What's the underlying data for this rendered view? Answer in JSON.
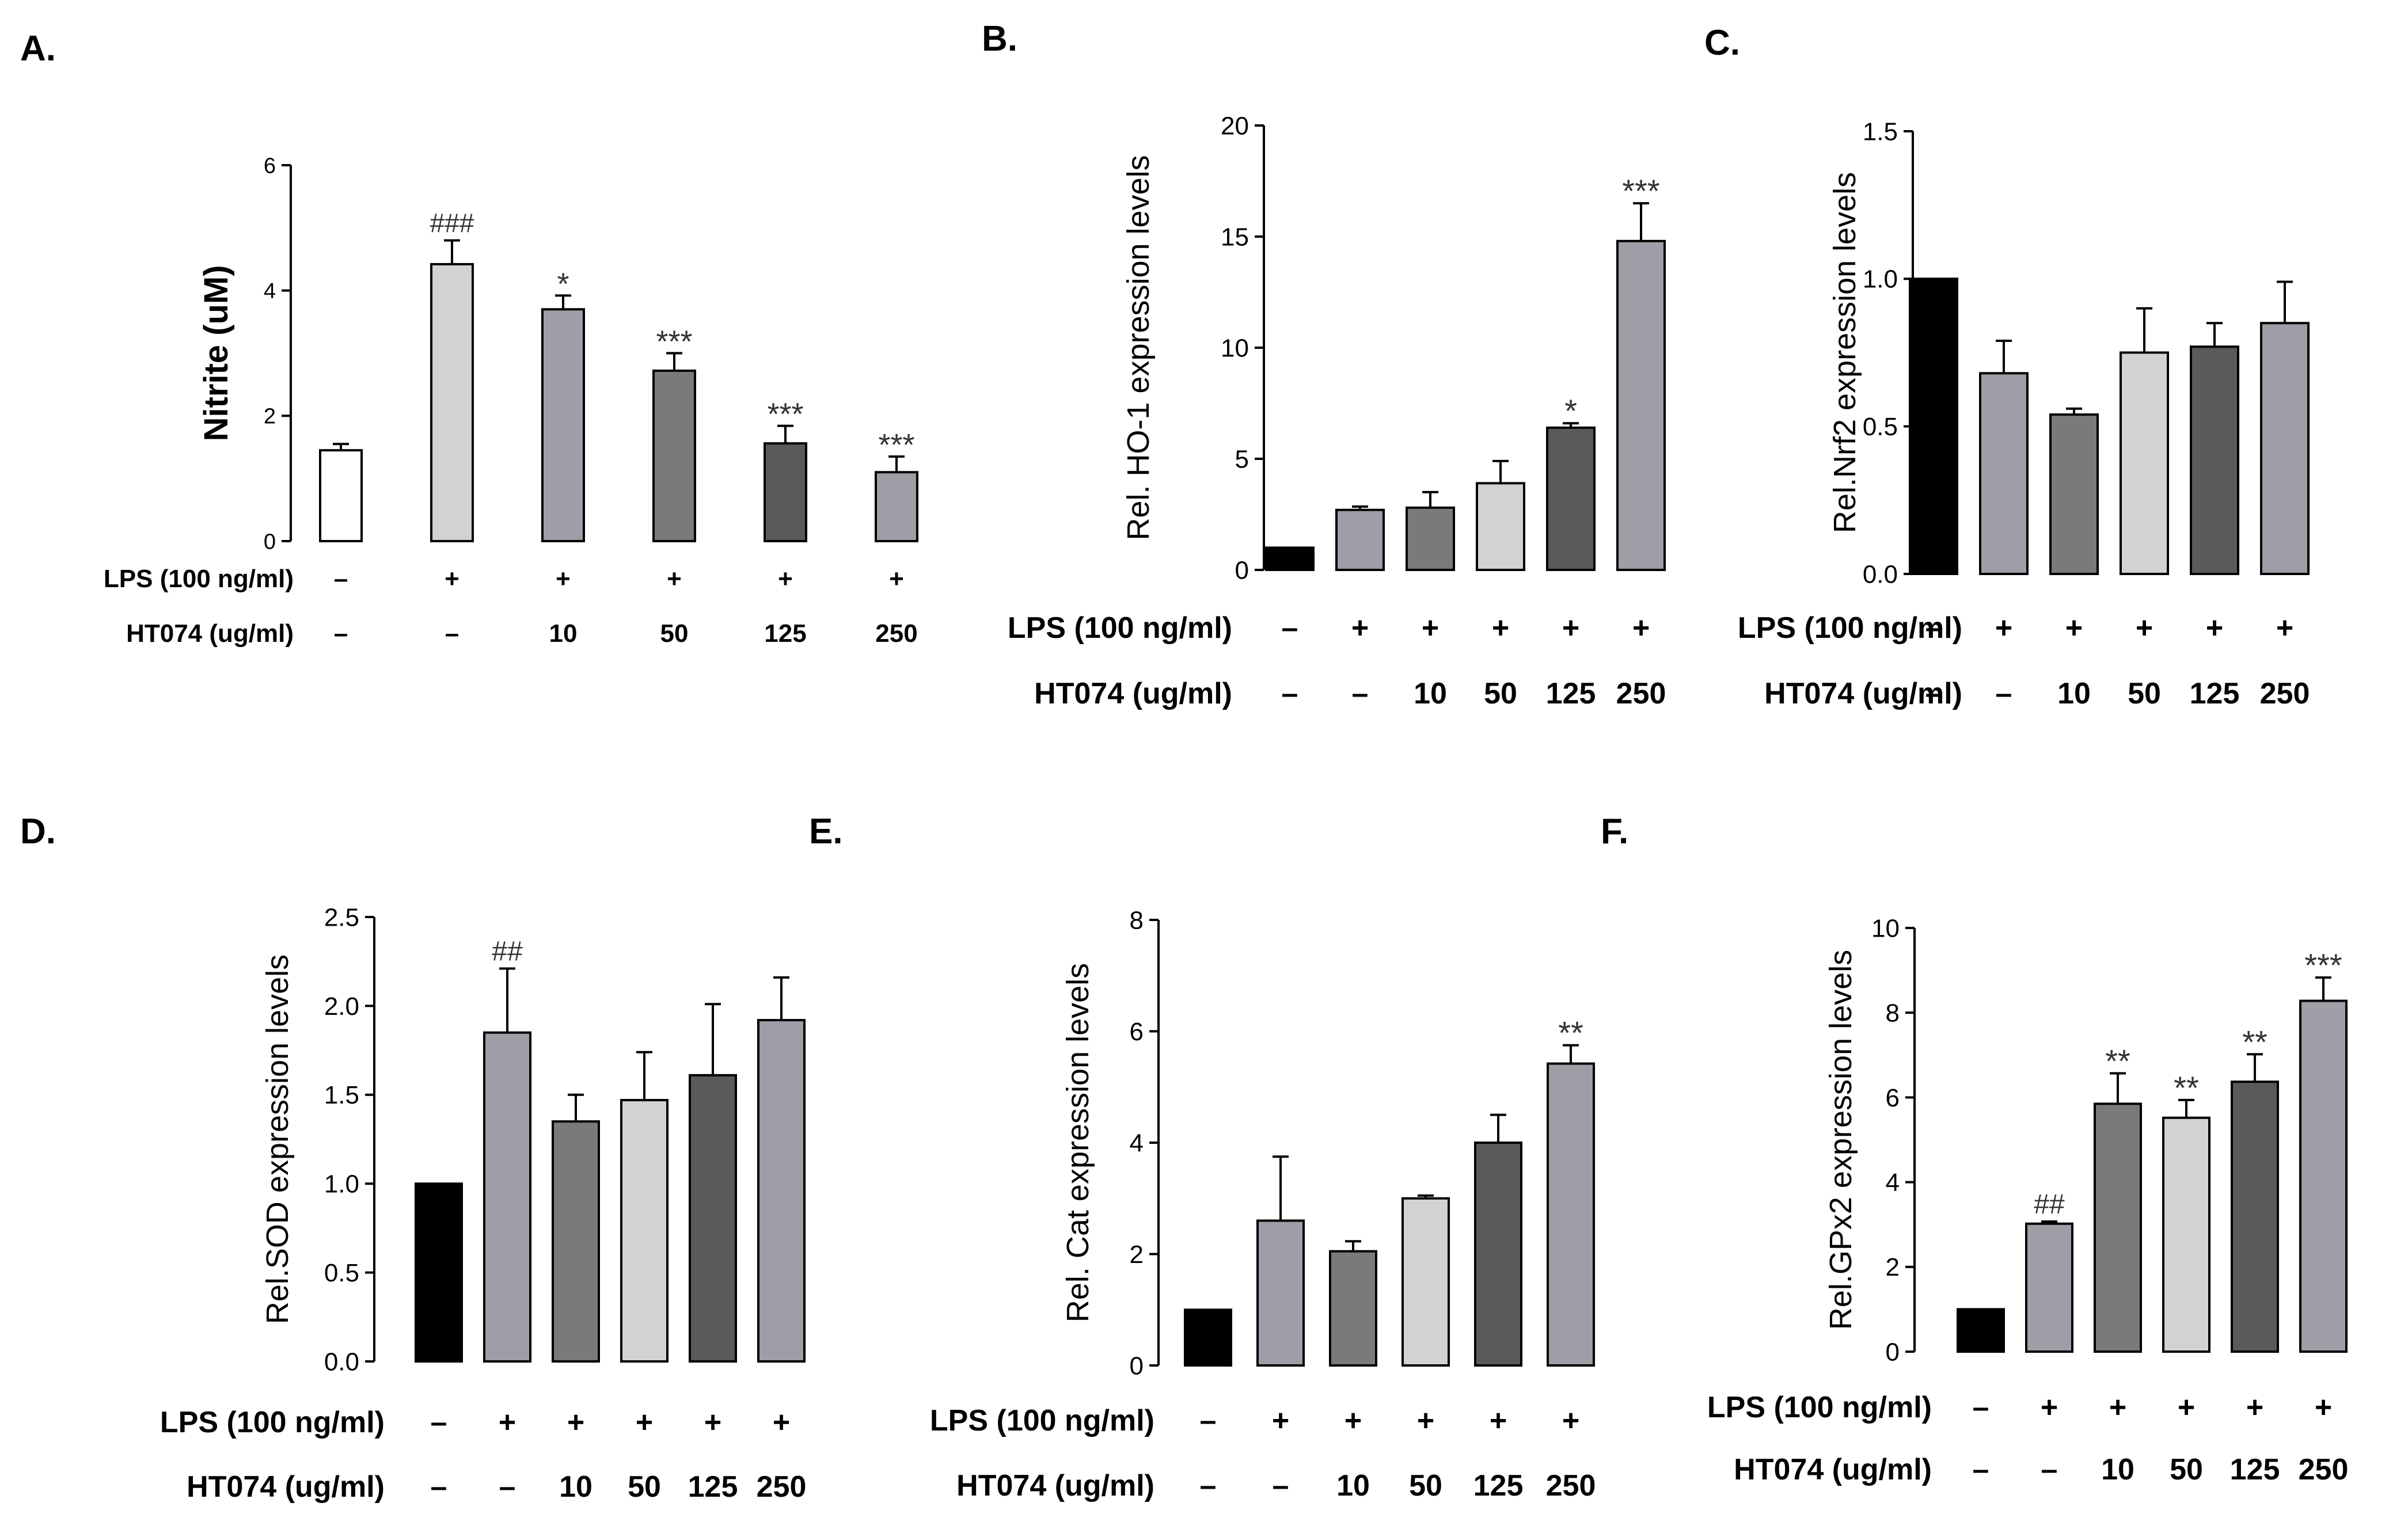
{
  "panel_spec": {
    "colors": {
      "white": "#ffffff",
      "black": "#000000",
      "mid": "#9e9ea6",
      "light": "#d2d2d2",
      "dark": "#7a7a7a",
      "darker": "#5a5a5a",
      "axis": "#000000"
    }
  },
  "chart_data": [
    {
      "type": "bar",
      "panel_label": "A.",
      "title": "",
      "ylabel": "Nitrite (uM)",
      "ylim": [
        0,
        6
      ],
      "yticks": [
        "0",
        "2",
        "4",
        "6"
      ],
      "categories": [
        "ctrl",
        "LPS",
        "LPS+10",
        "LPS+50",
        "LPS+125",
        "LPS+250"
      ],
      "values": [
        1.45,
        4.42,
        3.7,
        2.72,
        1.56,
        1.1
      ],
      "errors": [
        0.1,
        0.38,
        0.22,
        0.28,
        0.28,
        0.25
      ],
      "fills": [
        "white",
        "light",
        "mid",
        "dark",
        "darker",
        "mid"
      ],
      "annotations": [
        "",
        "###",
        "*",
        "***",
        "***",
        "***"
      ],
      "rows": [
        {
          "label": "LPS (100 ng/ml)",
          "values": [
            "–",
            "+",
            "+",
            "+",
            "+",
            "+"
          ]
        },
        {
          "label": "HT074 (ug/ml)",
          "values": [
            "–",
            "–",
            "10",
            "50",
            "125",
            "250"
          ]
        }
      ]
    },
    {
      "type": "bar",
      "panel_label": "B.",
      "title": "",
      "ylabel": "Rel. HO-1 expression levels",
      "ylim": [
        0,
        20
      ],
      "yticks": [
        "0",
        "5",
        "10",
        "15",
        "20"
      ],
      "categories": [
        "ctrl",
        "LPS",
        "LPS+10",
        "LPS+50",
        "LPS+125",
        "LPS+250"
      ],
      "values": [
        1.0,
        2.7,
        2.8,
        3.9,
        6.4,
        14.8
      ],
      "errors": [
        0,
        0.15,
        0.7,
        1.0,
        0.2,
        1.7
      ],
      "fills": [
        "black",
        "mid",
        "dark",
        "light",
        "darker",
        "mid"
      ],
      "annotations": [
        "",
        "",
        "",
        "",
        "*",
        "***"
      ],
      "rows": [
        {
          "label": "LPS (100 ng/ml)",
          "values": [
            "–",
            "+",
            "+",
            "+",
            "+",
            "+"
          ]
        },
        {
          "label": "HT074 (ug/ml)",
          "values": [
            "–",
            "–",
            "10",
            "50",
            "125",
            "250"
          ]
        }
      ]
    },
    {
      "type": "bar",
      "panel_label": "C.",
      "title": "",
      "ylabel": "Rel.Nrf2 expression levels",
      "ylim": [
        0,
        1.5
      ],
      "yticks": [
        "0.0",
        "0.5",
        "1.0",
        "1.5"
      ],
      "categories": [
        "ctrl",
        "LPS",
        "LPS+10",
        "LPS+50",
        "LPS+125",
        "LPS+250"
      ],
      "values": [
        1.0,
        0.68,
        0.54,
        0.75,
        0.77,
        0.85
      ],
      "errors": [
        0,
        0.11,
        0.02,
        0.15,
        0.08,
        0.14
      ],
      "fills": [
        "black",
        "mid",
        "dark",
        "light",
        "darker",
        "mid"
      ],
      "annotations": [
        "",
        "",
        "",
        "",
        "",
        ""
      ],
      "rows": [
        {
          "label": "LPS (100 ng/ml)",
          "values": [
            "–",
            "+",
            "+",
            "+",
            "+",
            "+"
          ]
        },
        {
          "label": "HT074 (ug/ml)",
          "values": [
            "–",
            "–",
            "10",
            "50",
            "125",
            "250"
          ]
        }
      ]
    },
    {
      "type": "bar",
      "panel_label": "D.",
      "title": "",
      "ylabel": "Rel.SOD expression levels",
      "ylim": [
        0,
        2.5
      ],
      "yticks": [
        "0.0",
        "0.5",
        "1.0",
        "1.5",
        "2.0",
        "2.5"
      ],
      "categories": [
        "ctrl",
        "LPS",
        "LPS+10",
        "LPS+50",
        "LPS+125",
        "LPS+250"
      ],
      "values": [
        1.0,
        1.85,
        1.35,
        1.47,
        1.61,
        1.92
      ],
      "errors": [
        0,
        0.36,
        0.15,
        0.27,
        0.4,
        0.24
      ],
      "fills": [
        "black",
        "mid",
        "dark",
        "light",
        "darker",
        "mid"
      ],
      "annotations": [
        "",
        "##",
        "",
        "",
        "",
        ""
      ],
      "rows": [
        {
          "label": "LPS (100 ng/ml)",
          "values": [
            "–",
            "+",
            "+",
            "+",
            "+",
            "+"
          ]
        },
        {
          "label": "HT074 (ug/ml)",
          "values": [
            "–",
            "–",
            "10",
            "50",
            "125",
            "250"
          ]
        }
      ]
    },
    {
      "type": "bar",
      "panel_label": "E.",
      "title": "",
      "ylabel": "Rel. Cat expression levels",
      "ylim": [
        0,
        8
      ],
      "yticks": [
        "0",
        "2",
        "4",
        "6",
        "8"
      ],
      "categories": [
        "ctrl",
        "LPS",
        "LPS+10",
        "LPS+50",
        "LPS+125",
        "LPS+250"
      ],
      "values": [
        1.0,
        2.6,
        2.05,
        3.0,
        4.0,
        5.42
      ],
      "errors": [
        0,
        1.15,
        0.18,
        0.05,
        0.5,
        0.33
      ],
      "fills": [
        "black",
        "mid",
        "dark",
        "light",
        "darker",
        "mid"
      ],
      "annotations": [
        "",
        "",
        "",
        "",
        "",
        "**"
      ],
      "rows": [
        {
          "label": "LPS (100 ng/ml)",
          "values": [
            "–",
            "+",
            "+",
            "+",
            "+",
            "+"
          ]
        },
        {
          "label": "HT074 (ug/ml)",
          "values": [
            "–",
            "–",
            "10",
            "50",
            "125",
            "250"
          ]
        }
      ]
    },
    {
      "type": "bar",
      "panel_label": "F.",
      "title": "",
      "ylabel": "Rel.GPx2 expression levels",
      "ylim": [
        0,
        10
      ],
      "yticks": [
        "0",
        "2",
        "4",
        "6",
        "8",
        "10"
      ],
      "categories": [
        "ctrl",
        "LPS",
        "LPS+10",
        "LPS+50",
        "LPS+125",
        "LPS+250"
      ],
      "values": [
        1.0,
        3.02,
        5.85,
        5.52,
        6.37,
        8.28
      ],
      "errors": [
        0,
        0.05,
        0.72,
        0.42,
        0.65,
        0.55
      ],
      "fills": [
        "black",
        "mid",
        "dark",
        "light",
        "darker",
        "mid"
      ],
      "annotations": [
        "",
        "##",
        "**",
        "**",
        "**",
        "***"
      ],
      "rows": [
        {
          "label": "LPS (100 ng/ml)",
          "values": [
            "–",
            "+",
            "+",
            "+",
            "+",
            "+"
          ]
        },
        {
          "label": "HT074 (ug/ml)",
          "values": [
            "–",
            "–",
            "10",
            "50",
            "125",
            "250"
          ]
        }
      ]
    }
  ]
}
